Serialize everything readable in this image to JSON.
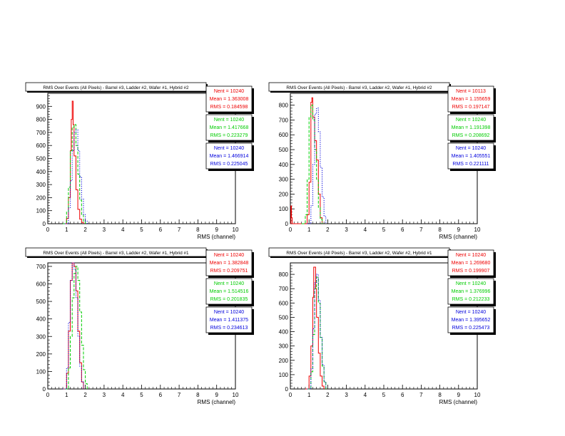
{
  "colors": {
    "red": "#ee0000",
    "green": "#00cc00",
    "blue": "#0000dd",
    "frame": "#000000"
  },
  "chart_data": [
    {
      "type": "histogram",
      "title": "RMS Over Events (All Pixels) - Barrel #3, Ladder #2, Wafer #1, Hybrid #2",
      "xlabel": "RMS (channel)",
      "xlim": [
        0,
        10
      ],
      "ylim": [
        0,
        1000
      ],
      "x_ticks": [
        "0",
        "1",
        "2",
        "3",
        "4",
        "5",
        "6",
        "7",
        "8",
        "9",
        "10"
      ],
      "y_ticks": [
        {
          "v": 0,
          "label": "0"
        },
        {
          "v": 100,
          "label": "100"
        },
        {
          "v": 200,
          "label": "200"
        },
        {
          "v": 300,
          "label": "300"
        },
        {
          "v": 400,
          "label": "400"
        },
        {
          "v": 500,
          "label": "500"
        },
        {
          "v": 600,
          "label": "600"
        },
        {
          "v": 700,
          "label": "700"
        },
        {
          "v": 800,
          "label": "800"
        },
        {
          "v": 900,
          "label": "900"
        }
      ],
      "series": [
        {
          "color": "red",
          "style": "solid",
          "x": [
            0.9,
            1.0,
            1.1,
            1.2,
            1.25,
            1.3,
            1.35,
            1.4,
            1.5,
            1.6,
            1.7,
            1.8,
            1.9
          ],
          "y": [
            0,
            40,
            200,
            560,
            800,
            940,
            760,
            520,
            260,
            110,
            35,
            10,
            0
          ],
          "stats": {
            "nent": "Nent = 10240",
            "mean": "Mean = 1.363008",
            "rms": "RMS = 0.184598"
          }
        },
        {
          "color": "green",
          "style": "dashed",
          "x": [
            0.8,
            1.0,
            1.1,
            1.2,
            1.3,
            1.4,
            1.5,
            1.6,
            1.7,
            1.8,
            1.9,
            2.0
          ],
          "y": [
            0,
            90,
            280,
            560,
            740,
            760,
            600,
            380,
            180,
            70,
            20,
            0
          ],
          "stats": {
            "nent": "Nent = 10240",
            "mean": "Mean = 1.417668",
            "rms": "RMS = 0.223279"
          }
        },
        {
          "color": "blue",
          "style": "dotted",
          "x": [
            0.9,
            1.1,
            1.2,
            1.3,
            1.4,
            1.5,
            1.6,
            1.7,
            1.8,
            1.9,
            2.0,
            2.1
          ],
          "y": [
            0,
            120,
            330,
            560,
            700,
            720,
            560,
            360,
            190,
            70,
            20,
            0
          ],
          "stats": {
            "nent": "Nent = 10240",
            "mean": "Mean = 1.466914",
            "rms": "RMS = 0.225045"
          }
        }
      ]
    },
    {
      "type": "histogram",
      "title": "RMS Over Events (All Pixels) - Barrel #3, Ladder #2, Wafer #1, Hybrid #2",
      "xlabel": "RMS (channel)",
      "xlim": [
        0,
        10
      ],
      "ylim": [
        0,
        880
      ],
      "x_ticks": [
        "0",
        "1",
        "2",
        "3",
        "4",
        "5",
        "6",
        "7",
        "8",
        "9",
        "10"
      ],
      "y_ticks": [
        {
          "v": 0,
          "label": "0"
        },
        {
          "v": 100,
          "label": "100"
        },
        {
          "v": 200,
          "label": "200"
        },
        {
          "v": 300,
          "label": "300"
        },
        {
          "v": 400,
          "label": "400"
        },
        {
          "v": 500,
          "label": "500"
        },
        {
          "v": 600,
          "label": "600"
        },
        {
          "v": 700,
          "label": "700"
        },
        {
          "v": 800,
          "label": "800"
        }
      ],
      "series": [
        {
          "color": "red",
          "style": "solid",
          "x": [
            0.0,
            0.03,
            0.06,
            0.1,
            0.7,
            0.9,
            1.0,
            1.1,
            1.15,
            1.2,
            1.3,
            1.4,
            1.5,
            1.6,
            1.7
          ],
          "y": [
            0,
            120,
            40,
            0,
            0,
            60,
            280,
            820,
            850,
            720,
            560,
            430,
            200,
            40,
            0
          ],
          "stats": {
            "nent": "Nent = 10113",
            "mean": "Mean = 1.155659",
            "rms": "RMS = 0.197147"
          }
        },
        {
          "color": "green",
          "style": "dashed",
          "x": [
            0.6,
            0.8,
            0.9,
            1.0,
            1.1,
            1.2,
            1.3,
            1.4,
            1.5,
            1.6,
            1.7
          ],
          "y": [
            0,
            60,
            300,
            720,
            800,
            700,
            500,
            300,
            110,
            30,
            0
          ],
          "stats": {
            "nent": "Nent = 10240",
            "mean": "Mean = 1.191398",
            "rms": "RMS = 0.208692"
          }
        },
        {
          "color": "blue",
          "style": "dotted",
          "x": [
            0.9,
            1.1,
            1.2,
            1.3,
            1.4,
            1.5,
            1.6,
            1.7,
            1.8,
            1.9
          ],
          "y": [
            0,
            120,
            400,
            740,
            780,
            620,
            380,
            180,
            50,
            0
          ],
          "stats": {
            "nent": "Nent = 10240",
            "mean": "Mean = 1.405551",
            "rms": "RMS = 0.221111"
          }
        }
      ]
    },
    {
      "type": "histogram",
      "title": "RMS Over Events (All Pixels) - Barrel #3, Ladder #2, Wafer #1, Hybrid #1",
      "xlabel": "RMS (channel)",
      "xlim": [
        0,
        10
      ],
      "ylim": [
        0,
        720
      ],
      "x_ticks": [
        "0",
        "1",
        "2",
        "3",
        "4",
        "5",
        "6",
        "7",
        "8",
        "9",
        "10"
      ],
      "y_ticks": [
        {
          "v": 0,
          "label": "0"
        },
        {
          "v": 100,
          "label": "100"
        },
        {
          "v": 200,
          "label": "200"
        },
        {
          "v": 300,
          "label": "300"
        },
        {
          "v": 400,
          "label": "400"
        },
        {
          "v": 500,
          "label": "500"
        },
        {
          "v": 600,
          "label": "600"
        },
        {
          "v": 700,
          "label": "700"
        }
      ],
      "series": [
        {
          "color": "red",
          "style": "solid",
          "x": [
            0.8,
            1.0,
            1.1,
            1.2,
            1.3,
            1.4,
            1.5,
            1.6,
            1.7,
            1.8,
            1.9
          ],
          "y": [
            0,
            90,
            330,
            620,
            720,
            700,
            560,
            330,
            150,
            40,
            0
          ],
          "stats": {
            "nent": "Nent = 10240",
            "mean": "Mean = 1.382848",
            "rms": "RMS = 0.209751"
          }
        },
        {
          "color": "green",
          "style": "dashed",
          "x": [
            0.9,
            1.1,
            1.2,
            1.3,
            1.4,
            1.5,
            1.6,
            1.7,
            1.8,
            1.9,
            2.0,
            2.1
          ],
          "y": [
            0,
            120,
            300,
            520,
            660,
            700,
            620,
            440,
            250,
            110,
            30,
            0
          ],
          "stats": {
            "nent": "Nent = 10240",
            "mean": "Mean = 1.514516",
            "rms": "RMS = 0.201835"
          }
        },
        {
          "color": "blue",
          "style": "dotted",
          "x": [
            0.8,
            1.0,
            1.1,
            1.2,
            1.3,
            1.4,
            1.5,
            1.6,
            1.7,
            1.8,
            1.9
          ],
          "y": [
            0,
            120,
            380,
            620,
            720,
            680,
            520,
            300,
            130,
            40,
            0
          ],
          "stats": {
            "nent": "Nent = 10240",
            "mean": "Mean = 1.411375",
            "rms": "RMS = 0.234613"
          }
        }
      ]
    },
    {
      "type": "histogram",
      "title": "RMS Over Events (All Pixels) - Barrel #3, Ladder #2, Wafer #2, Hybrid #1",
      "xlabel": "RMS (channel)",
      "xlim": [
        0,
        10
      ],
      "ylim": [
        0,
        880
      ],
      "x_ticks": [
        "0",
        "1",
        "2",
        "3",
        "4",
        "5",
        "6",
        "7",
        "8",
        "9",
        "10"
      ],
      "y_ticks": [
        {
          "v": 0,
          "label": "0"
        },
        {
          "v": 100,
          "label": "100"
        },
        {
          "v": 200,
          "label": "200"
        },
        {
          "v": 300,
          "label": "300"
        },
        {
          "v": 400,
          "label": "400"
        },
        {
          "v": 500,
          "label": "500"
        },
        {
          "v": 600,
          "label": "600"
        },
        {
          "v": 700,
          "label": "700"
        },
        {
          "v": 800,
          "label": "800"
        }
      ],
      "series": [
        {
          "color": "red",
          "style": "solid",
          "x": [
            0.8,
            1.0,
            1.1,
            1.2,
            1.25,
            1.3,
            1.35,
            1.4,
            1.5,
            1.6,
            1.7,
            1.8
          ],
          "y": [
            0,
            90,
            300,
            640,
            850,
            850,
            700,
            500,
            250,
            90,
            20,
            0
          ],
          "stats": {
            "nent": "Nent = 10240",
            "mean": "Mean = 1.269680",
            "rms": "RMS = 0.199907"
          }
        },
        {
          "color": "green",
          "style": "dashed",
          "x": [
            0.9,
            1.1,
            1.2,
            1.3,
            1.4,
            1.5,
            1.6,
            1.7,
            1.8,
            1.9
          ],
          "y": [
            0,
            120,
            380,
            700,
            780,
            600,
            360,
            160,
            50,
            0
          ],
          "stats": {
            "nent": "Nent = 10240",
            "mean": "Mean = 1.376996",
            "rms": "RMS = 0.212233"
          }
        },
        {
          "color": "blue",
          "style": "dotted",
          "x": [
            0.9,
            1.1,
            1.2,
            1.3,
            1.4,
            1.5,
            1.6,
            1.7,
            1.8,
            1.9
          ],
          "y": [
            0,
            140,
            420,
            740,
            800,
            620,
            360,
            170,
            50,
            0
          ],
          "stats": {
            "nent": "Nent = 10240",
            "mean": "Mean = 1.395652",
            "rms": "RMS = 0.225473"
          }
        }
      ]
    }
  ]
}
